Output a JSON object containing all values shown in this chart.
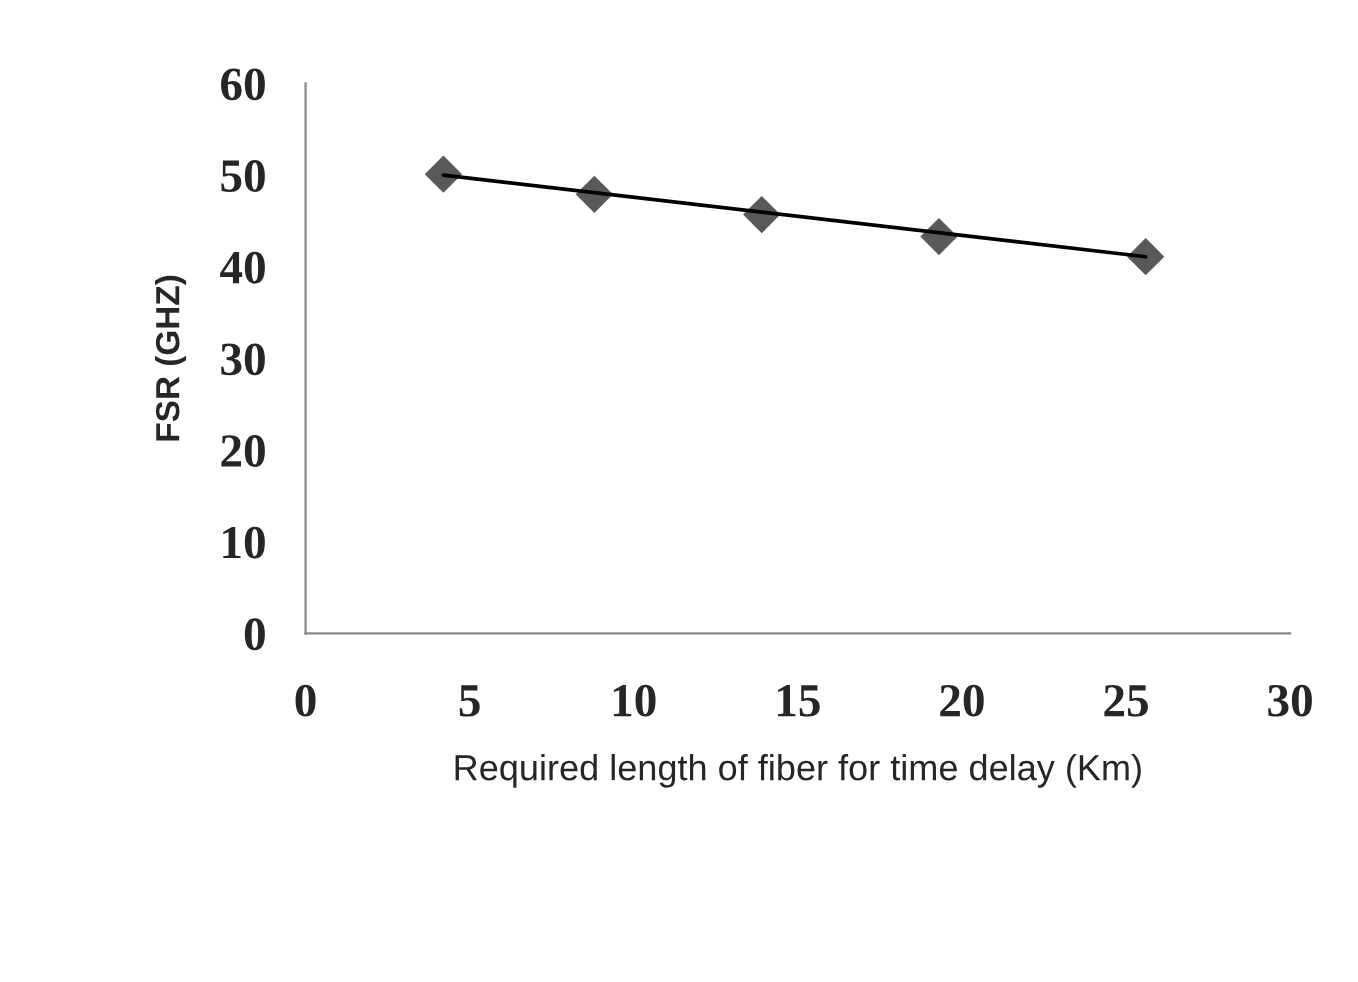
{
  "chart_data": {
    "type": "scatter",
    "xlabel": "Required length of fiber for time delay (Km)",
    "ylabel": "FSR (GHZ)",
    "series": [
      {
        "color": "#595959",
        "marker": "diamond",
        "x": [
          4.2,
          8.8,
          13.9,
          19.3,
          25.6
        ],
        "values": [
          50.1,
          47.9,
          45.7,
          43.3,
          41.1
        ]
      },
      {
        "type": "line",
        "color": "#000000",
        "marker": "none",
        "x": [
          4.2,
          25.6
        ],
        "values": [
          50.0,
          41.1
        ]
      }
    ],
    "xlim": [
      0,
      30
    ],
    "xticks": [
      0,
      5,
      10,
      15,
      20,
      25,
      30
    ],
    "ylim": [
      0,
      60
    ],
    "yticks": [
      0,
      10,
      20,
      30,
      40,
      50,
      60
    ],
    "grid": false,
    "legend": false
  }
}
